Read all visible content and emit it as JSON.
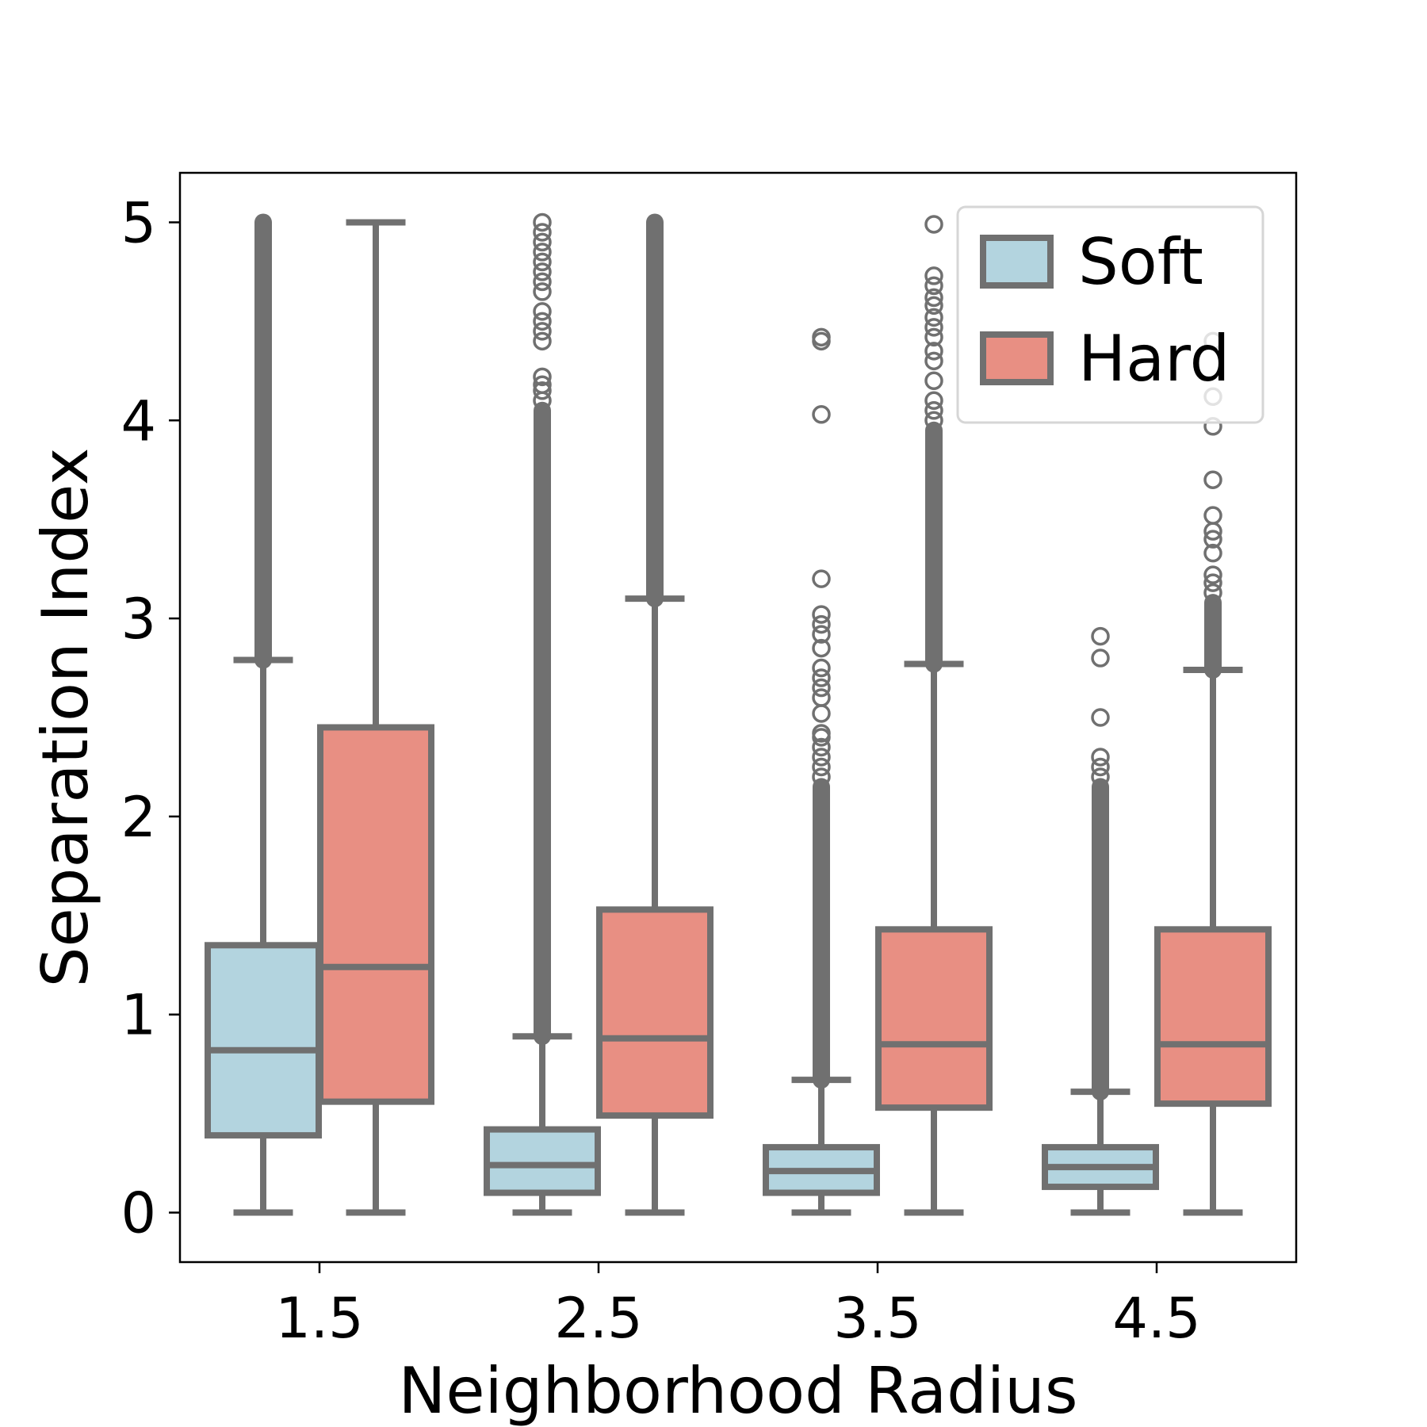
{
  "chart_data": {
    "type": "box",
    "xlabel": "Neighborhood Radius",
    "ylabel": "Separation Index",
    "categories": [
      "1.5",
      "2.5",
      "3.5",
      "4.5"
    ],
    "ylim": [
      -0.25,
      5.25
    ],
    "yticks": [
      0,
      1,
      2,
      3,
      4,
      5
    ],
    "grid": false,
    "legend": {
      "position": "top-right"
    },
    "colors": {
      "edge": "#707070",
      "axis": "#000000"
    },
    "series": [
      {
        "name": "Soft",
        "color": "#b3d4df",
        "boxes": [
          {
            "whislo": 0.0,
            "q1": 0.39,
            "med": 0.82,
            "q3": 1.35,
            "whishi": 2.79,
            "outlier_bands": [
              [
                2.79,
                5.0
              ]
            ],
            "outliers": []
          },
          {
            "whislo": 0.0,
            "q1": 0.1,
            "med": 0.24,
            "q3": 0.42,
            "whishi": 0.89,
            "outlier_bands": [
              [
                0.89,
                4.05
              ]
            ],
            "outliers": [
              4.1,
              4.15,
              4.18,
              4.22,
              4.4,
              4.45,
              4.5,
              4.55,
              4.65,
              4.7,
              4.75,
              4.8,
              4.85,
              4.9,
              4.95,
              5.0
            ]
          },
          {
            "whislo": 0.0,
            "q1": 0.1,
            "med": 0.21,
            "q3": 0.33,
            "whishi": 0.67,
            "outlier_bands": [
              [
                0.67,
                2.15
              ]
            ],
            "outliers": [
              2.2,
              2.25,
              2.3,
              2.35,
              2.4,
              2.42,
              2.52,
              2.6,
              2.65,
              2.7,
              2.75,
              2.85,
              2.92,
              2.97,
              3.02,
              3.2,
              4.03,
              4.4,
              4.42
            ]
          },
          {
            "whislo": 0.0,
            "q1": 0.13,
            "med": 0.23,
            "q3": 0.33,
            "whishi": 0.61,
            "outlier_bands": [
              [
                0.61,
                2.15
              ]
            ],
            "outliers": [
              2.2,
              2.25,
              2.3,
              2.5,
              2.8,
              2.91
            ]
          }
        ]
      },
      {
        "name": "Hard",
        "color": "#e88f83",
        "boxes": [
          {
            "whislo": 0.0,
            "q1": 0.56,
            "med": 1.24,
            "q3": 2.45,
            "whishi": 5.0,
            "outlier_bands": [],
            "outliers": []
          },
          {
            "whislo": 0.0,
            "q1": 0.49,
            "med": 0.88,
            "q3": 1.53,
            "whishi": 3.1,
            "outlier_bands": [
              [
                3.1,
                5.0
              ]
            ],
            "outliers": []
          },
          {
            "whislo": 0.0,
            "q1": 0.53,
            "med": 0.85,
            "q3": 1.43,
            "whishi": 2.77,
            "outlier_bands": [
              [
                2.77,
                3.95
              ]
            ],
            "outliers": [
              4.0,
              4.05,
              4.1,
              4.2,
              4.3,
              4.35,
              4.42,
              4.47,
              4.52,
              4.58,
              4.62,
              4.68,
              4.73,
              4.99
            ]
          },
          {
            "whislo": 0.0,
            "q1": 0.55,
            "med": 0.85,
            "q3": 1.43,
            "whishi": 2.74,
            "outlier_bands": [
              [
                2.74,
                3.08
              ]
            ],
            "outliers": [
              3.13,
              3.18,
              3.22,
              3.33,
              3.4,
              3.44,
              3.52,
              3.7,
              3.97,
              4.12,
              4.4
            ]
          }
        ]
      }
    ]
  }
}
